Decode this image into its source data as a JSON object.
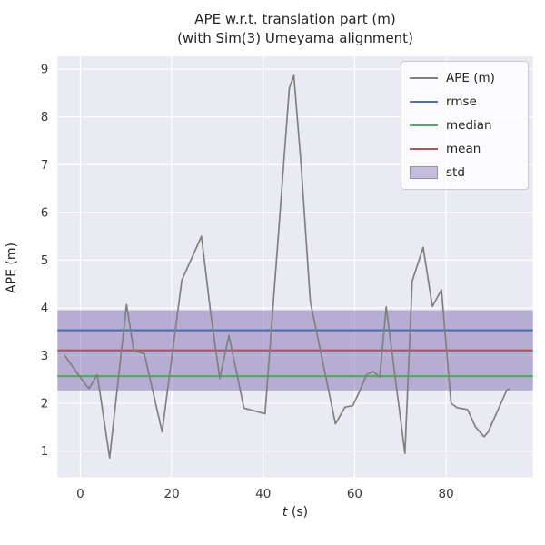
{
  "style": {
    "fig_bg": "#ffffff",
    "plot_bg": "#eaeaf2",
    "grid_color": "#ffffff",
    "text_color": "#262626",
    "legend_bg": "rgba(255,255,255,0.82)",
    "legend_border": "#cccccc"
  },
  "chart_data": {
    "type": "line",
    "title_line1": "APE w.r.t. translation part (m)",
    "title_line2": "(with Sim(3) Umeyama alignment)",
    "xlabel_var": "t",
    "xlabel_unit": " (s)",
    "ylabel": "APE (m)",
    "xlim": [
      -5,
      99
    ],
    "ylim": [
      0.45,
      9.27
    ],
    "xticks": [
      0,
      20,
      40,
      60,
      80
    ],
    "yticks": [
      1,
      2,
      3,
      4,
      5,
      6,
      7,
      8,
      9
    ],
    "grid": true,
    "legend_position": "upper right",
    "series": [
      {
        "name": "APE (m)",
        "color": "#808080",
        "x": [
          -3.4,
          1.3,
          1.9,
          3.7,
          6.4,
          10.1,
          11.7,
          14.0,
          17.9,
          22.2,
          26.5,
          28.5,
          30.5,
          32.5,
          35.8,
          40.4,
          45.7,
          46.7,
          48.3,
          50.3,
          55.8,
          57.9,
          59.6,
          61.2,
          62.6,
          64.0,
          65.5,
          66.9,
          71.0,
          72.6,
          75.0,
          77.0,
          79.0,
          81.1,
          82.4,
          84.7,
          86.4,
          88.3,
          89.2,
          93.3,
          93.9
        ],
        "y": [
          3.0,
          2.37,
          2.31,
          2.6,
          0.86,
          4.07,
          3.1,
          3.04,
          1.4,
          4.58,
          5.5,
          3.9,
          2.52,
          3.42,
          1.9,
          1.78,
          8.6,
          8.87,
          7.0,
          4.14,
          1.57,
          1.92,
          1.95,
          2.28,
          2.6,
          2.67,
          2.55,
          4.02,
          0.95,
          4.56,
          5.27,
          4.03,
          4.38,
          2.0,
          1.91,
          1.87,
          1.51,
          1.3,
          1.4,
          2.28,
          2.3
        ]
      }
    ],
    "stats": {
      "rmse": {
        "label": "rmse",
        "value": 3.53,
        "color": "#4c72b0"
      },
      "median": {
        "label": "median",
        "value": 2.57,
        "color": "#55a868"
      },
      "mean": {
        "label": "mean",
        "value": 3.11,
        "color": "#c44e52"
      },
      "std": {
        "label": "std",
        "value": 0.84,
        "band_low": 2.27,
        "band_high": 3.95,
        "color": "#8172b2",
        "alpha": 0.5
      }
    },
    "legend": [
      {
        "label": "APE (m)",
        "type": "line",
        "color": "#808080"
      },
      {
        "label": "rmse",
        "type": "line",
        "color": "#4c72b0"
      },
      {
        "label": "median",
        "type": "line",
        "color": "#55a868"
      },
      {
        "label": "mean",
        "type": "line",
        "color": "#c44e52"
      },
      {
        "label": "std",
        "type": "patch",
        "color": "#8172b2",
        "alpha": 0.46
      }
    ]
  }
}
